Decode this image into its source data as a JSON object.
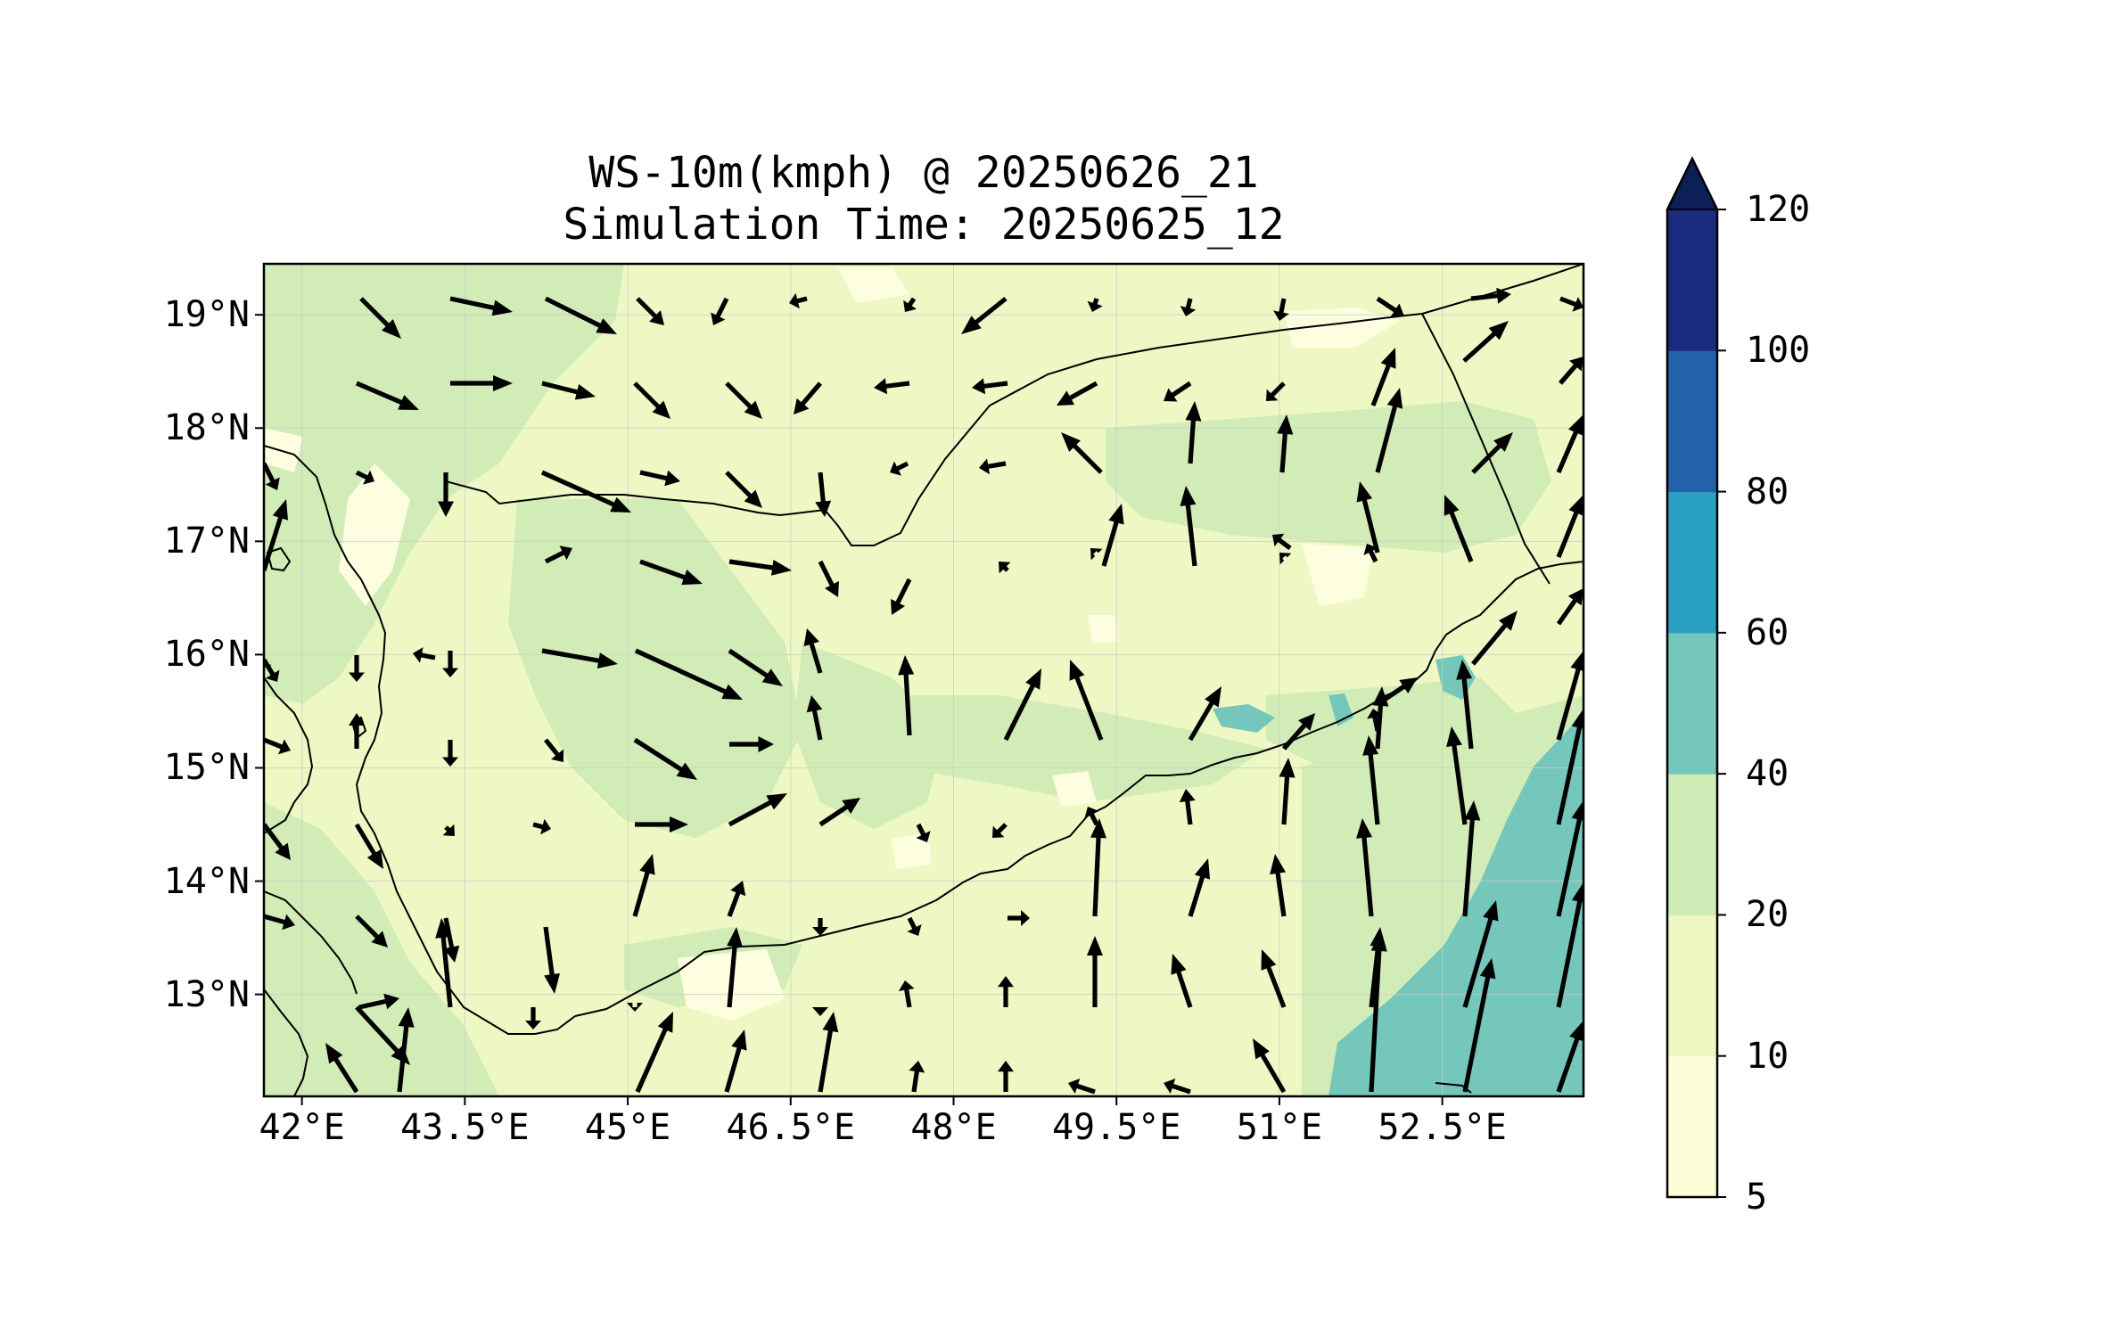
{
  "title": {
    "line1": "WS-10m(kmph) @ 20250626_21",
    "line2": "Simulation Time: 20250625_12"
  },
  "map": {
    "lon_range": [
      41.65,
      53.8
    ],
    "lat_range": [
      12.1,
      19.45
    ],
    "x_ticks": [
      {
        "value": 42.0,
        "label": "42°E"
      },
      {
        "value": 43.5,
        "label": "43.5°E"
      },
      {
        "value": 45.0,
        "label": "45°E"
      },
      {
        "value": 46.5,
        "label": "46.5°E"
      },
      {
        "value": 48.0,
        "label": "48°E"
      },
      {
        "value": 49.5,
        "label": "49.5°E"
      },
      {
        "value": 51.0,
        "label": "51°E"
      },
      {
        "value": 52.5,
        "label": "52.5°E"
      }
    ],
    "y_ticks": [
      {
        "value": 19,
        "label": "19°N"
      },
      {
        "value": 18,
        "label": "18°N"
      },
      {
        "value": 17,
        "label": "17°N"
      },
      {
        "value": 16,
        "label": "16°N"
      },
      {
        "value": 15,
        "label": "15°N"
      },
      {
        "value": 14,
        "label": "14°N"
      },
      {
        "value": 13,
        "label": "13°N"
      }
    ],
    "gridlines": true,
    "field_colors": [
      "#fdfee0",
      "#eef8c4",
      "#d2ecb7",
      "#75c6bb"
    ]
  },
  "colorbar": {
    "levels": [
      5,
      10,
      20,
      40,
      60,
      80,
      100,
      120
    ],
    "labels": [
      "5",
      "10",
      "20",
      "40",
      "60",
      "80",
      "100",
      "120"
    ],
    "colors": [
      "#fdfed8",
      "#eef8c2",
      "#d0ecb6",
      "#75c6bb",
      "#2ba1c2",
      "#2262a8",
      "#1b2b7d"
    ],
    "extend_color": "#0c1f56",
    "extend": "max"
  }
}
